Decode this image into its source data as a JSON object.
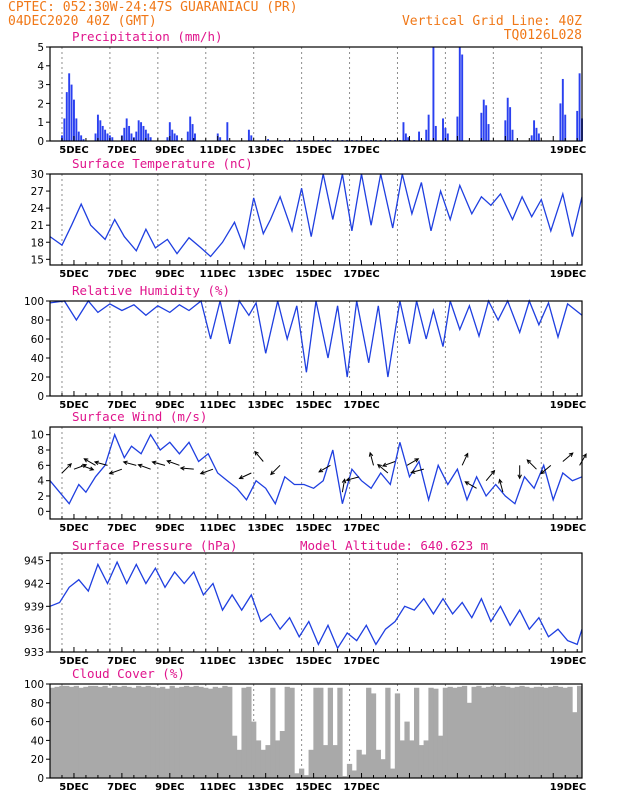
{
  "header": {
    "line1_left": "CPTEC:  052:30W-24:47S  GUARANIACU (PR)",
    "line2_left": "04DEC2020 40Z (GMT)",
    "line1_right": "Vertical Grid Line: 40Z",
    "line2_right": "TQ0126L028"
  },
  "colors": {
    "header": "#f07818",
    "title": "#e0148c",
    "line": "#1f3fe0",
    "bar": "#2a40f0",
    "cloud": "#a9a9a9",
    "grid": "#8c8c8c"
  },
  "chart_data": [
    {
      "type": "bar",
      "title": "Precipitation (mm/h)",
      "ylim": [
        0,
        5
      ],
      "yticks": [
        0,
        1,
        2,
        3,
        4,
        5
      ],
      "x_tick_labels": [
        "5DEC",
        "7DEC",
        "9DEC",
        "11DEC",
        "13DEC",
        "15DEC",
        "17DEC",
        "19DEC"
      ],
      "x": [
        0.5,
        0.6,
        0.7,
        0.8,
        0.9,
        1.0,
        1.1,
        1.2,
        1.3,
        1.4,
        1.9,
        2.0,
        2.1,
        2.2,
        2.3,
        2.4,
        2.5,
        2.6,
        3.0,
        3.1,
        3.2,
        3.3,
        3.4,
        3.5,
        3.6,
        3.7,
        3.8,
        3.9,
        4.0,
        4.1,
        4.2,
        4.9,
        5.0,
        5.1,
        5.2,
        5.3,
        5.75,
        5.85,
        5.95,
        6.05,
        7.0,
        7.1,
        7.4,
        8.3,
        8.4,
        9.1,
        9.6,
        9.8,
        10.0,
        10.2,
        10.4,
        11.0,
        11.2,
        11.4,
        11.6,
        11.8,
        12.0,
        12.2,
        12.4,
        12.6,
        12.8,
        13.0,
        13.2,
        13.4,
        13.6,
        13.8,
        14.0,
        14.2,
        14.4,
        14.6,
        14.8,
        15.0,
        15.2,
        14.75,
        14.85,
        14.95,
        15.4,
        15.7,
        15.8,
        16.0,
        16.1,
        16.4,
        16.5,
        16.6,
        17.0,
        17.1,
        17.2,
        18.0,
        18.1,
        18.2,
        18.3,
        19.0,
        19.1,
        19.2,
        19.3,
        20.1,
        20.2,
        20.3,
        20.4,
        21.3,
        21.4,
        21.5,
        22.0,
        22.1,
        22.2
      ],
      "values": [
        0.3,
        1.2,
        2.6,
        3.6,
        3.0,
        2.2,
        1.2,
        0.5,
        0.3,
        0.1,
        0.4,
        1.4,
        1.1,
        0.8,
        0.6,
        0.4,
        0.3,
        0.2,
        0.3,
        0.7,
        1.2,
        0.8,
        0.4,
        0.2,
        0.5,
        1.1,
        1.0,
        0.8,
        0.6,
        0.4,
        0.2,
        0.2,
        1.0,
        0.6,
        0.4,
        0.3,
        0.5,
        1.3,
        0.9,
        0.4,
        0.4,
        0.2,
        1.0,
        0.6,
        0.3,
        0.1,
        0.05,
        0.05,
        0.05,
        0.05,
        0.05,
        0.05,
        0.05,
        0.05,
        0.05,
        0.05,
        0.05,
        0.05,
        0.05,
        0.05,
        0.05,
        0.05,
        0.05,
        0.05,
        0.05,
        0.05,
        0.05,
        0.05,
        0.05,
        0.05,
        0.05,
        0.05,
        0.05,
        1.0,
        0.4,
        0.2,
        0.5,
        0.6,
        1.4,
        5.0,
        0.8,
        1.2,
        0.7,
        0.4,
        1.3,
        5.0,
        4.6,
        1.5,
        2.2,
        1.9,
        0.9,
        1.1,
        2.3,
        1.8,
        0.6,
        0.3,
        1.1,
        0.7,
        0.4,
        2.0,
        3.3,
        1.4,
        1.6,
        3.6,
        1.2
      ]
    },
    {
      "type": "line",
      "title": "Surface Temperature (nC)",
      "ylim": [
        14,
        30
      ],
      "yticks": [
        15,
        18,
        21,
        24,
        27,
        30
      ],
      "x_tick_labels": [
        "5DEC",
        "7DEC",
        "9DEC",
        "11DEC",
        "13DEC",
        "15DEC",
        "17DEC",
        "19DEC"
      ],
      "x": [
        0.0,
        0.5,
        0.9,
        1.3,
        1.7,
        2.3,
        2.7,
        3.1,
        3.6,
        4.0,
        4.4,
        4.9,
        5.3,
        5.8,
        6.3,
        6.7,
        7.2,
        7.7,
        8.1,
        8.5,
        8.9,
        9.2,
        9.6,
        10.1,
        10.5,
        10.9,
        11.4,
        11.8,
        12.2,
        12.6,
        13.0,
        13.4,
        13.8,
        14.3,
        14.7,
        15.1,
        15.5,
        15.9,
        16.3,
        16.7,
        17.1,
        17.6,
        18.0,
        18.4,
        18.8,
        19.3,
        19.7,
        20.1,
        20.5,
        20.9,
        21.4,
        21.8,
        22.2
      ],
      "values": [
        19.0,
        17.5,
        21.0,
        24.7,
        21.0,
        18.5,
        22.0,
        19.0,
        16.5,
        20.3,
        17.0,
        18.5,
        16.0,
        18.8,
        17.0,
        15.5,
        18.0,
        21.5,
        17.0,
        25.8,
        19.5,
        22.0,
        26.0,
        20.0,
        27.5,
        19.0,
        30.0,
        22.0,
        30.0,
        20.0,
        30.0,
        21.0,
        30.0,
        20.5,
        30.0,
        23.0,
        28.5,
        20.0,
        27.0,
        22.0,
        28.0,
        23.0,
        26.0,
        24.5,
        26.5,
        22.0,
        26.0,
        22.5,
        25.5,
        20.0,
        26.5,
        19.0,
        26.0
      ]
    },
    {
      "type": "line",
      "title": "Relative Humidity (%)",
      "ylim": [
        0,
        100
      ],
      "yticks": [
        0,
        20,
        40,
        60,
        80,
        100
      ],
      "x_tick_labels": [
        "5DEC",
        "7DEC",
        "9DEC",
        "11DEC",
        "13DEC",
        "15DEC",
        "17DEC",
        "19DEC"
      ],
      "x": [
        0.0,
        0.6,
        1.1,
        1.6,
        2.0,
        2.5,
        3.0,
        3.5,
        4.0,
        4.5,
        5.0,
        5.4,
        5.8,
        6.3,
        6.7,
        7.1,
        7.5,
        7.9,
        8.3,
        8.6,
        9.0,
        9.5,
        9.9,
        10.3,
        10.7,
        11.1,
        11.6,
        12.0,
        12.4,
        12.8,
        13.3,
        13.7,
        14.1,
        14.6,
        15.0,
        15.3,
        15.7,
        16.0,
        16.4,
        16.7,
        17.1,
        17.5,
        17.9,
        18.3,
        18.7,
        19.1,
        19.6,
        20.0,
        20.4,
        20.8,
        21.2,
        21.6,
        22.2
      ],
      "values": [
        98,
        100,
        80,
        100,
        88,
        97,
        90,
        96,
        85,
        95,
        88,
        96,
        90,
        100,
        60,
        100,
        55,
        100,
        85,
        98,
        45,
        100,
        60,
        95,
        25,
        100,
        40,
        95,
        20,
        100,
        35,
        95,
        20,
        100,
        55,
        100,
        60,
        90,
        52,
        100,
        70,
        95,
        63,
        100,
        80,
        100,
        67,
        100,
        75,
        98,
        62,
        97,
        85
      ]
    },
    {
      "type": "line",
      "title": "Surface Wind (m/s)",
      "ylim": [
        -1,
        11
      ],
      "yticks": [
        0,
        2,
        4,
        6,
        8,
        10
      ],
      "x_tick_labels": [
        "5DEC",
        "7DEC",
        "9DEC",
        "11DEC",
        "13DEC",
        "15DEC",
        "17DEC",
        "19DEC"
      ],
      "x": [
        0.0,
        0.4,
        0.8,
        1.2,
        1.5,
        1.9,
        2.3,
        2.7,
        3.1,
        3.4,
        3.8,
        4.2,
        4.6,
        5.0,
        5.4,
        5.8,
        6.2,
        6.6,
        7.0,
        7.4,
        7.8,
        8.2,
        8.6,
        9.0,
        9.4,
        9.8,
        10.2,
        10.6,
        11.0,
        11.4,
        11.8,
        12.2,
        12.6,
        13.0,
        13.4,
        13.8,
        14.2,
        14.6,
        15.0,
        15.4,
        15.8,
        16.2,
        16.6,
        17.0,
        17.4,
        17.8,
        18.2,
        18.6,
        19.0,
        19.4,
        19.8,
        20.2,
        20.6,
        21.0,
        21.4,
        21.8,
        22.2
      ],
      "values": [
        4.0,
        2.5,
        1.0,
        3.5,
        2.5,
        4.5,
        6.0,
        10.0,
        7.0,
        8.5,
        7.5,
        10.0,
        8.0,
        9.0,
        7.5,
        9.0,
        6.5,
        7.5,
        5.0,
        4.0,
        3.0,
        1.5,
        4.0,
        3.0,
        1.0,
        4.5,
        3.5,
        3.5,
        3.0,
        4.0,
        8.0,
        1.0,
        5.5,
        4.0,
        3.0,
        5.0,
        3.5,
        9.0,
        4.5,
        6.5,
        1.5,
        6.0,
        3.5,
        5.5,
        1.5,
        4.5,
        2.0,
        3.5,
        2.0,
        1.0,
        4.5,
        3.0,
        6.0,
        1.5,
        5.0,
        4.0,
        4.5
      ],
      "arrows_x": [
        0.5,
        1.0,
        1.3,
        1.9,
        2.4,
        3.0,
        3.6,
        4.2,
        4.8,
        5.4,
        6.0,
        6.8,
        8.4,
        8.9,
        9.6,
        11.7,
        12.2,
        12.9,
        13.5,
        14.1,
        14.4,
        14.9,
        15.6,
        17.2,
        17.8,
        18.2,
        18.9,
        19.6,
        20.3,
        20.9,
        21.4,
        22.1
      ],
      "arrows_y": [
        5.0,
        5.5,
        6.0,
        6.0,
        6.0,
        5.5,
        6.0,
        5.5,
        6.0,
        6.0,
        5.5,
        5.5,
        5.0,
        6.5,
        6.0,
        6.0,
        2.5,
        4.5,
        6.0,
        5.0,
        6.5,
        6.0,
        5.5,
        6.0,
        3.0,
        4.0,
        2.5,
        6.0,
        5.5,
        6.0,
        6.5,
        6.0
      ],
      "arrows_angle_deg": [
        45,
        20,
        -20,
        150,
        165,
        200,
        165,
        160,
        165,
        160,
        175,
        200,
        205,
        130,
        225,
        210,
        80,
        195,
        105,
        140,
        200,
        30,
        195,
        65,
        150,
        50,
        105,
        270,
        135,
        220,
        40,
        60
      ]
    },
    {
      "type": "line",
      "title": "Surface Pressure (hPa)",
      "annotation": "Model Altitude: 640.623 m",
      "ylim": [
        933,
        946
      ],
      "yticks": [
        933,
        936,
        939,
        942,
        945
      ],
      "x_tick_labels": [
        "5DEC",
        "7DEC",
        "9DEC",
        "11DEC",
        "13DEC",
        "15DEC",
        "17DEC",
        "19DEC"
      ],
      "x": [
        0.0,
        0.4,
        0.8,
        1.2,
        1.6,
        2.0,
        2.4,
        2.8,
        3.2,
        3.6,
        4.0,
        4.4,
        4.8,
        5.2,
        5.6,
        6.0,
        6.4,
        6.8,
        7.2,
        7.6,
        8.0,
        8.4,
        8.8,
        9.2,
        9.6,
        10.0,
        10.4,
        10.8,
        11.2,
        11.6,
        12.0,
        12.4,
        12.8,
        13.2,
        13.6,
        14.0,
        14.4,
        14.8,
        15.2,
        15.6,
        16.0,
        16.4,
        16.8,
        17.2,
        17.6,
        18.0,
        18.4,
        18.8,
        19.2,
        19.6,
        20.0,
        20.4,
        20.8,
        21.2,
        21.6,
        22.0,
        22.2
      ],
      "values": [
        939.0,
        939.5,
        941.5,
        942.5,
        941.0,
        944.5,
        942.0,
        944.8,
        942.0,
        944.5,
        942.0,
        944.0,
        941.5,
        943.5,
        942.0,
        943.5,
        940.5,
        942.0,
        938.5,
        940.5,
        938.5,
        940.5,
        937.0,
        938.0,
        936.0,
        937.5,
        935.0,
        937.0,
        934.0,
        936.5,
        933.5,
        935.5,
        934.5,
        936.5,
        934.0,
        936.0,
        937.0,
        939.0,
        938.5,
        940.0,
        938.0,
        940.0,
        938.0,
        939.5,
        937.5,
        940.0,
        937.0,
        939.0,
        936.5,
        938.5,
        936.0,
        937.5,
        935.0,
        936.0,
        934.5,
        934.0,
        936.0
      ]
    },
    {
      "type": "bar",
      "title": "Cloud Cover (%)",
      "ylim": [
        0,
        100
      ],
      "yticks": [
        0,
        20,
        40,
        60,
        80,
        100
      ],
      "x_tick_labels": [
        "5DEC",
        "7DEC",
        "9DEC",
        "11DEC",
        "13DEC",
        "15DEC",
        "17DEC",
        "19DEC"
      ],
      "x": [
        0.1,
        0.3,
        0.5,
        0.7,
        0.9,
        1.1,
        1.3,
        1.5,
        1.7,
        1.9,
        2.1,
        2.3,
        2.5,
        2.7,
        2.9,
        3.1,
        3.3,
        3.5,
        3.7,
        3.9,
        4.1,
        4.3,
        4.5,
        4.7,
        4.9,
        5.1,
        5.3,
        5.5,
        5.7,
        5.9,
        6.1,
        6.3,
        6.5,
        6.7,
        6.9,
        7.1,
        7.3,
        7.5,
        7.7,
        7.9,
        8.1,
        8.3,
        8.5,
        8.7,
        8.9,
        9.1,
        9.3,
        9.5,
        9.7,
        9.9,
        10.1,
        10.3,
        10.5,
        10.7,
        10.9,
        11.1,
        11.3,
        11.5,
        11.7,
        11.9,
        12.1,
        12.3,
        12.5,
        12.7,
        12.9,
        13.1,
        13.3,
        13.5,
        13.7,
        13.9,
        14.1,
        14.3,
        14.5,
        14.7,
        14.9,
        15.1,
        15.3,
        15.5,
        15.7,
        15.9,
        16.1,
        16.3,
        16.5,
        16.7,
        16.9,
        17.1,
        17.3,
        17.5,
        17.7,
        17.9,
        18.1,
        18.3,
        18.5,
        18.7,
        18.9,
        19.1,
        19.3,
        19.5,
        19.7,
        19.9,
        20.1,
        20.3,
        20.5,
        20.7,
        20.9,
        21.1,
        21.3,
        21.5,
        21.7,
        21.9,
        22.1
      ],
      "values": [
        96,
        97,
        98,
        98,
        97,
        98,
        96,
        97,
        98,
        98,
        97,
        98,
        96,
        98,
        97,
        98,
        97,
        96,
        98,
        97,
        98,
        97,
        96,
        97,
        95,
        98,
        96,
        97,
        98,
        97,
        98,
        97,
        96,
        95,
        97,
        96,
        98,
        97,
        45,
        30,
        96,
        97,
        60,
        40,
        30,
        35,
        96,
        40,
        50,
        97,
        96,
        5,
        10,
        3,
        30,
        96,
        96,
        35,
        96,
        35,
        96,
        2,
        15,
        8,
        30,
        25,
        96,
        90,
        30,
        20,
        96,
        10,
        90,
        40,
        60,
        40,
        96,
        35,
        40,
        96,
        95,
        45,
        96,
        97,
        96,
        97,
        98,
        80,
        97,
        98,
        96,
        97,
        98,
        97,
        98,
        97,
        96,
        97,
        98,
        97,
        96,
        97,
        97,
        96,
        97,
        98,
        97,
        96,
        97,
        70,
        98
      ]
    }
  ]
}
